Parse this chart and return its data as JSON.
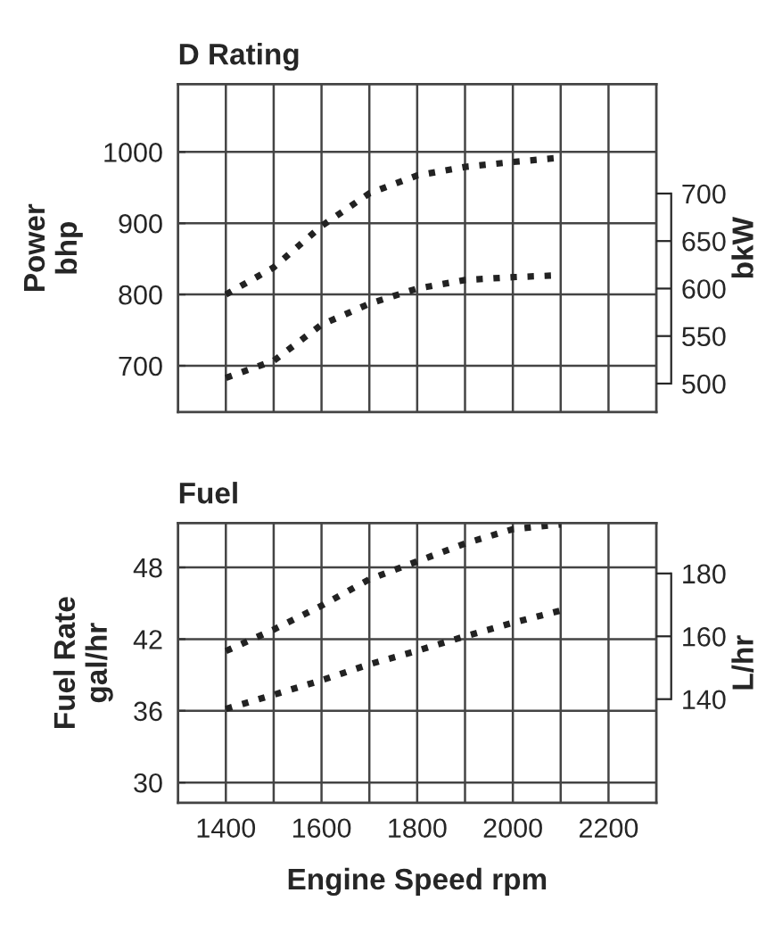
{
  "chart_data": [
    {
      "type": "line",
      "title": "D Rating",
      "ylabel": "Power\nbhp",
      "y2label": "bkW",
      "x": [
        1400,
        1500,
        1600,
        1700,
        1800,
        1900,
        2000,
        2100
      ],
      "series": [
        {
          "color": "#222222",
          "values": [
            800,
            838,
            896,
            942,
            967,
            979,
            986,
            992
          ]
        },
        {
          "color": "#222222",
          "axis": "y2",
          "values": [
            506,
            524,
            562,
            584,
            600,
            609,
            612,
            614
          ]
        }
      ],
      "xlim": [
        1300,
        2300
      ],
      "xticks": [
        {
          "value": 1400,
          "label": null
        },
        {
          "value": 1500,
          "label": null
        },
        {
          "value": 1600,
          "label": null
        },
        {
          "value": 1700,
          "label": null
        },
        {
          "value": 1800,
          "label": null
        },
        {
          "value": 1900,
          "label": null
        },
        {
          "value": 2000,
          "label": null
        },
        {
          "value": 2100,
          "label": null
        },
        {
          "value": 2200,
          "label": null
        }
      ],
      "ylim": [
        635,
        1095
      ],
      "yticks": [
        700,
        800,
        900,
        1000
      ],
      "y2lim": [
        470,
        815
      ],
      "y2ticks": [
        500,
        550,
        600,
        650,
        700
      ],
      "grid": true,
      "line_style": "dotted",
      "marker": "none",
      "tick_labels": "y"
    },
    {
      "type": "line",
      "title": "Fuel",
      "xlabel": "Engine Speed rpm",
      "ylabel": "Fuel Rate\ngal/hr",
      "y2label": "L/hr",
      "x": [
        1400,
        1500,
        1600,
        1700,
        1800,
        1900,
        2000,
        2100
      ],
      "series": [
        {
          "color": "#222222",
          "values": [
            41.0,
            42.8,
            44.8,
            47.0,
            48.5,
            50.0,
            51.2,
            51.6
          ]
        },
        {
          "color": "#222222",
          "axis": "y2",
          "values": [
            136.9,
            141.4,
            146,
            151.1,
            155.4,
            160,
            164.3,
            168.2
          ]
        }
      ],
      "xlim": [
        1300,
        2300
      ],
      "xticks": [
        1400,
        {
          "value": 1500,
          "label": null
        },
        1600,
        {
          "value": 1700,
          "label": null
        },
        1800,
        {
          "value": 1900,
          "label": null
        },
        2000,
        {
          "value": 2100,
          "label": null
        },
        2200
      ],
      "ylim": [
        28.3,
        51.7
      ],
      "yticks": [
        30,
        36,
        42,
        48
      ],
      "y2lim": [
        107,
        196
      ],
      "y2ticks": [
        140,
        160,
        180
      ],
      "grid": true,
      "line_style": "dotted",
      "marker": "none"
    }
  ]
}
